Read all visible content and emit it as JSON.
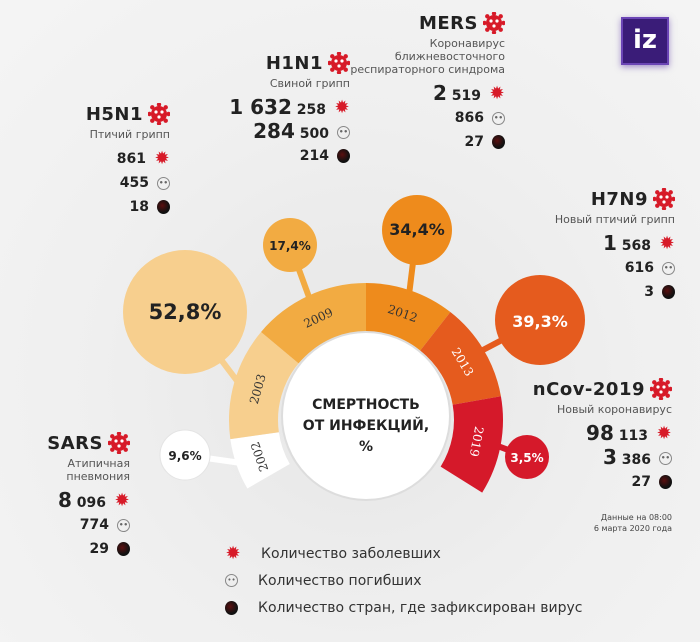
{
  "logo": "iz",
  "center_label": [
    "СМЕРТНОСТЬ",
    "ОТ ИНФЕКЦИЙ,",
    "%"
  ],
  "chart_data": {
    "type": "pie",
    "title": "СМЕРТНОСТЬ ОТ ИНФЕКЦИЙ, %",
    "categories": [
      "2002",
      "2003",
      "2009",
      "2012",
      "2013",
      "2019"
    ],
    "values": [
      9.6,
      52.8,
      17.4,
      34.4,
      39.3,
      3.5
    ],
    "value_labels": [
      "9,6%",
      "52,8%",
      "17,4%",
      "34,4%",
      "39,3%",
      "3,5%"
    ],
    "colors": [
      "#ffffff",
      "#f7cf8e",
      "#f2ab42",
      "#ee8b1c",
      "#e55b1e",
      "#d5192a"
    ]
  },
  "viruses": [
    {
      "name": "SARS",
      "sub": "Атипичная пневмония",
      "cases": "8 096",
      "deaths": "774",
      "countries": "29"
    },
    {
      "name": "H5N1",
      "sub": "Птичий грипп",
      "cases": "861",
      "deaths": "455",
      "countries": "18"
    },
    {
      "name": "H1N1",
      "sub": "Свиной грипп",
      "cases": "1 632 258",
      "deaths": "284 500",
      "countries": "214"
    },
    {
      "name": "MERS",
      "sub": "Коронавирус ближневосточного респираторного синдрома",
      "cases": "2 519",
      "deaths": "866",
      "countries": "27"
    },
    {
      "name": "H7N9",
      "sub": "Новый птичий грипп",
      "cases": "1 568",
      "deaths": "616",
      "countries": "3"
    },
    {
      "name": "nCov-2019",
      "sub": "Новый коронавирус",
      "cases": "98 113",
      "deaths": "3 386",
      "countries": "27"
    }
  ],
  "note": [
    "Данные на 08:00",
    "6 марта 2020 года"
  ],
  "legend": [
    "Количество заболевших",
    "Количество погибших",
    "Количество стран, где зафиксирован вирус"
  ],
  "accent": "#d71a28"
}
